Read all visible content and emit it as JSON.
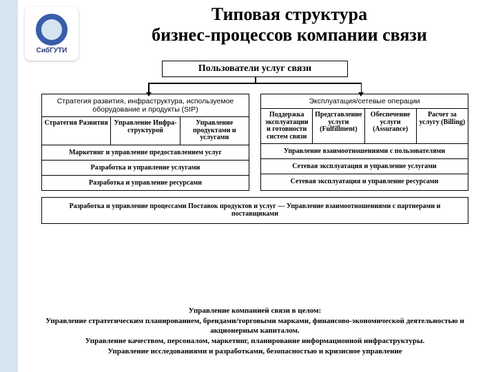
{
  "logo_label": "СибГУТИ",
  "title_line1": "Типовая структура",
  "title_line2": "бизнес-процессов компании связи",
  "top_box": "Пользователи услуг связи",
  "left": {
    "header": "Стратегия развития, инфраструктура, используемое оборудование и продукты (SIP)",
    "subs": [
      "Стратегия Развития",
      "Управление Инфра-структурой",
      "Управление продуктами и услугами"
    ],
    "bands": [
      "Маркетинг и управление предоставлением услуг",
      "Разработка и управление услугами",
      "Разработка и управление ресурсами"
    ]
  },
  "right": {
    "header": "Эксплуатация/сетевые операции",
    "subs": [
      "Поддержка эксплуатации и готовности систем связи",
      "Представление услуги (Fulfillment)",
      "Обеспечение услуги (Assurance)",
      "Расчет за услугу (Billing)"
    ],
    "bands": [
      "Управление взаимоотношениями с пользователями",
      "Сетевая эксплуатация и управление услугами",
      "Сетевая эксплуатация и управление ресурсами"
    ]
  },
  "full_band": "Разработка и управление процессами\nПоставок продуктов и услуг — Управление взаимоотношениями с партнерами и поставщиками",
  "bottom": [
    "Управление компанией связи в целом:",
    "Управление стратегическим планированием, брендами/торговыми марками, финансово-экономической деятельностью и акционерным капиталом.",
    "Управление качеством, персоналом, маркетинг, планирование информационной инфраструктуры.",
    "Управление исследованиями и разработками, безопасностью и кризисное управление"
  ],
  "colors": {
    "stripe": "#d6e4f0",
    "border": "#000000",
    "logo_ring": "#3a5daa"
  }
}
